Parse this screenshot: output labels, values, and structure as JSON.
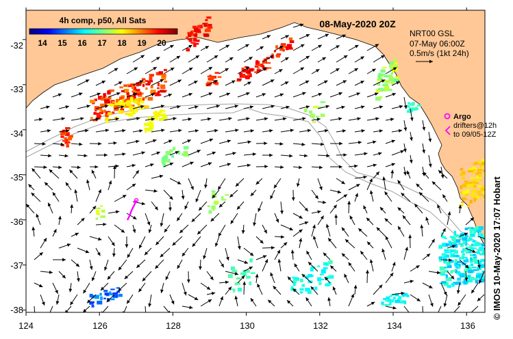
{
  "header": {
    "date_label": "08-May-2020 20Z",
    "product_label": "4h comp, p50, All Sats"
  },
  "colorbar": {
    "ticks": [
      "14",
      "15",
      "16",
      "17",
      "18",
      "19",
      "20"
    ],
    "min": 13.5,
    "max": 20.5
  },
  "axes": {
    "lon_ticks": [
      "124",
      "126",
      "128",
      "130",
      "132",
      "134",
      "136"
    ],
    "lat_ticks": [
      "-32",
      "-33",
      "-34",
      "-35",
      "-36",
      "-37",
      "-38"
    ],
    "lon_range": [
      124,
      136.5
    ],
    "lat_range": [
      -38.05,
      -31.35
    ]
  },
  "currents_legend": {
    "line1": "NRT00 GSL",
    "line2": "07-May 06:00Z",
    "line3": "0.5m/s (1kt 24h)"
  },
  "argo_legend": {
    "title": "Argo",
    "line1": "drifters@12h",
    "line2": "to 09/05-12Z"
  },
  "credit": "© IMOS 10-May-2020 17:07 Hobart",
  "colors": {
    "land": "#ffc896",
    "ocean": "#ffffff",
    "contour": "#a0a0a0",
    "arrow": "#000000",
    "argo": "#ff00ff"
  }
}
